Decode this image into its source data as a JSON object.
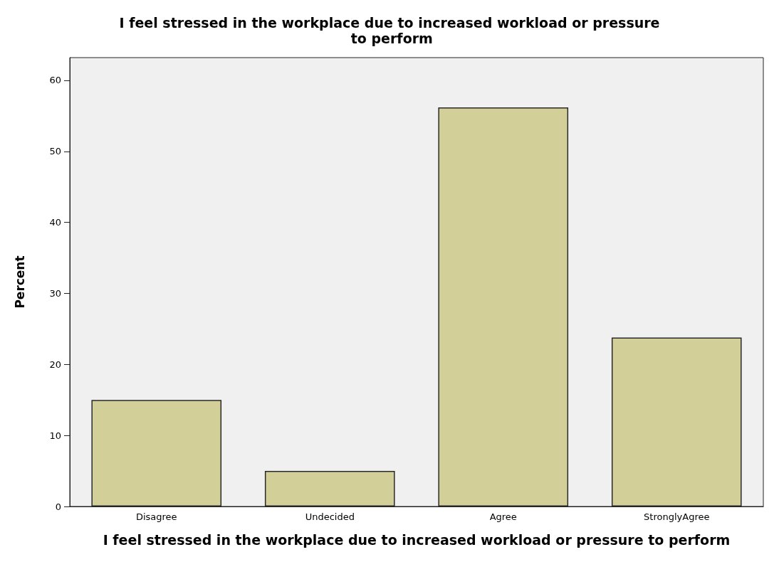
{
  "chart_data": {
    "type": "bar",
    "title": "I feel stressed in the workplace due to increased workload or pressure to perform",
    "xlabel": "I feel stressed in the workplace due to increased workload or pressure to perform",
    "ylabel": "Percent",
    "categories": [
      "Disagree",
      "Undecided",
      "Agree",
      "StronglyAgree"
    ],
    "values": [
      15,
      5,
      56.2,
      23.8
    ],
    "color": "#d3cf98",
    "ylim": [
      0,
      63.2
    ],
    "yticks": [
      0,
      10,
      20,
      30,
      40,
      50,
      60
    ],
    "grid": false
  }
}
